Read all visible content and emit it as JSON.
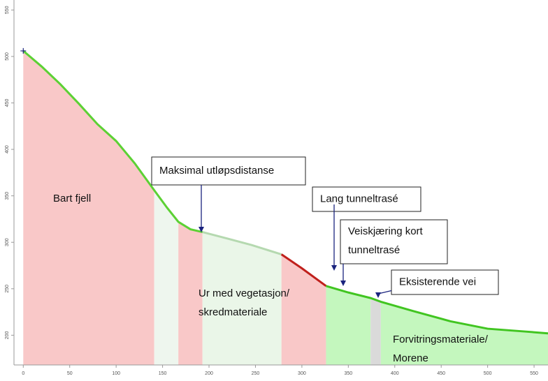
{
  "chart_data": {
    "type": "area-profile",
    "xlim": [
      -10,
      565
    ],
    "ylim": [
      168,
      557
    ],
    "xticks": [
      0,
      50,
      100,
      150,
      200,
      250,
      300,
      350,
      400,
      450,
      500,
      550
    ],
    "yticks": [
      200,
      250,
      300,
      350,
      400,
      450,
      500,
      550
    ],
    "profile_segments": [
      {
        "color": "#5cd134",
        "x": [
          0,
          20,
          40,
          60,
          80,
          100,
          120,
          141,
          155,
          167,
          180,
          193
        ],
        "values": [
          506,
          489,
          470,
          449,
          427,
          409,
          385,
          356,
          337,
          322,
          314,
          311
        ]
      },
      {
        "color": "#b5d9b0",
        "x": [
          193,
          220,
          246,
          278
        ],
        "values": [
          311,
          304,
          297,
          287
        ]
      },
      {
        "color": "#c0201c",
        "x": [
          278,
          300,
          326
        ],
        "values": [
          287,
          272,
          253
        ]
      },
      {
        "color": "#41c521",
        "x": [
          326,
          350,
          374,
          385,
          420,
          460,
          500,
          540,
          565
        ],
        "values": [
          253,
          246,
          240,
          236,
          226,
          215,
          207,
          204,
          202
        ]
      }
    ],
    "zones": [
      {
        "from": 0,
        "to": 141,
        "color": "#f9c8c8"
      },
      {
        "from": 141,
        "to": 167,
        "color": "#eef6ee"
      },
      {
        "from": 167,
        "to": 193,
        "color": "#f9c8c8"
      },
      {
        "from": 193,
        "to": 278,
        "color": "#eaf6e8"
      },
      {
        "from": 278,
        "to": 326,
        "color": "#f9c8c8"
      },
      {
        "from": 326,
        "to": 374,
        "color": "#c4f7be"
      },
      {
        "from": 374,
        "to": 385,
        "color": "#dadada"
      },
      {
        "from": 385,
        "to": 565,
        "color": "#c4f7be"
      }
    ],
    "labels": [
      [
        "Bart fjell"
      ],
      [
        "Ur med vegetasjon/",
        "skredmateriale"
      ],
      [
        "Forvitringsmateriale/",
        "Morene"
      ]
    ],
    "callouts": [
      [
        "Maksimal utløpsdistanse"
      ],
      [
        "Lang tunneltrasé"
      ],
      [
        "Veiskjæring kort",
        "tunneltrasé"
      ],
      [
        "Eksisterende vei"
      ]
    ]
  }
}
